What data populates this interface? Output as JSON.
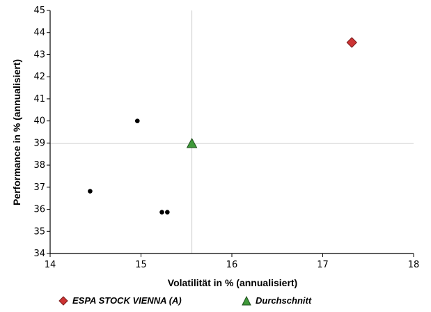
{
  "chart_data": {
    "type": "scatter",
    "xlabel": "Volatilität in % (annualisiert)",
    "ylabel": "Performance in % (annualisiert)",
    "xlim": [
      14,
      18
    ],
    "ylim": [
      34,
      45
    ],
    "x_ticks": [
      "14",
      "15",
      "16",
      "17",
      "18"
    ],
    "y_ticks": [
      "34",
      "35",
      "36",
      "37",
      "38",
      "39",
      "40",
      "41",
      "42",
      "43",
      "44",
      "45"
    ],
    "series": [
      {
        "name": "ESPA STOCK VIENNA (A)",
        "marker": "diamond",
        "color": "#cc3333",
        "points": [
          {
            "x": 17.32,
            "y": 43.55
          }
        ]
      },
      {
        "name": "Durchschnitt",
        "marker": "triangle",
        "color": "#3f9a3a",
        "points": [
          {
            "x": 15.56,
            "y": 38.98
          }
        ]
      },
      {
        "marker": "dot",
        "color": "#000000",
        "points": [
          {
            "x": 14.96,
            "y": 40.0
          },
          {
            "x": 14.44,
            "y": 36.82
          },
          {
            "x": 15.23,
            "y": 35.87
          },
          {
            "x": 15.29,
            "y": 35.87
          }
        ]
      }
    ],
    "reference_lines": {
      "x": 15.56,
      "y": 38.98
    },
    "grid": false,
    "legend_position": "bottom"
  },
  "legend": {
    "items": [
      {
        "label": "ESPA STOCK VIENNA (A)",
        "icon": "diamond-icon",
        "color": "#cc3333"
      },
      {
        "label": "Durchschnitt",
        "icon": "triangle-icon",
        "color": "#3f9a3a"
      }
    ]
  }
}
